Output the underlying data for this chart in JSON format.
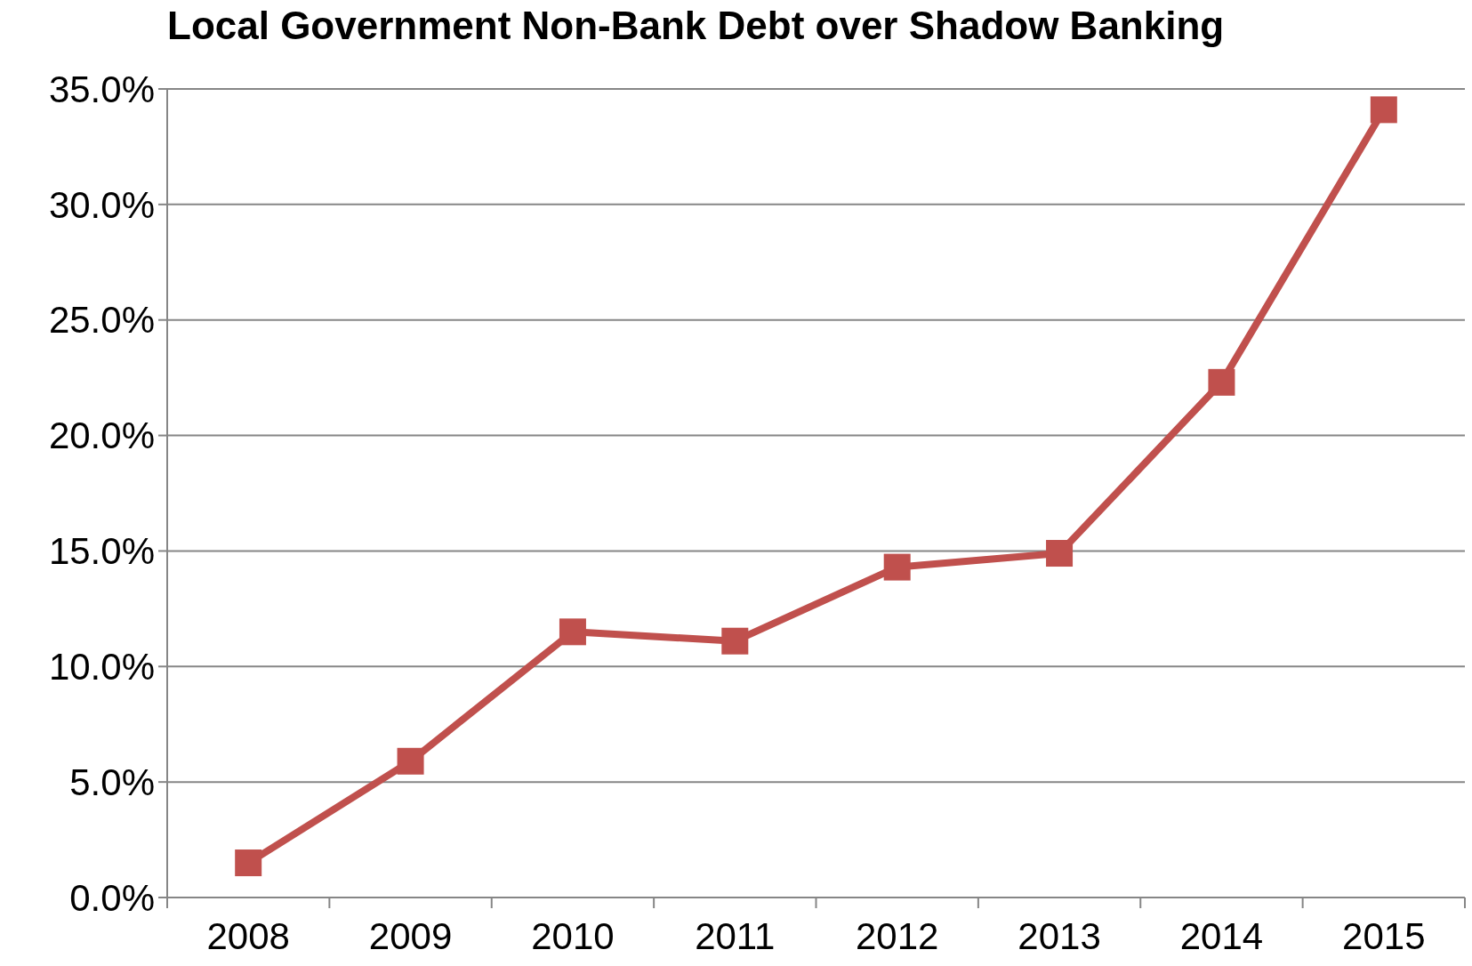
{
  "chart_data": {
    "type": "line",
    "title": "Local Government Non-Bank Debt over Shadow Banking",
    "categories": [
      "2008",
      "2009",
      "2010",
      "2011",
      "2012",
      "2013",
      "2014",
      "2015"
    ],
    "series": [
      {
        "color": "#c0504d",
        "values": [
          1.5,
          5.9,
          11.5,
          11.1,
          14.3,
          14.9,
          22.3,
          34.1
        ]
      }
    ],
    "ylim": [
      0,
      35
    ],
    "yticks": [
      {
        "value": 0,
        "label": "0.0%"
      },
      {
        "value": 5,
        "label": "5.0%"
      },
      {
        "value": 10,
        "label": "10.0%"
      },
      {
        "value": 15,
        "label": "15.0%"
      },
      {
        "value": 20,
        "label": "20.0%"
      },
      {
        "value": 25,
        "label": "25.0%"
      },
      {
        "value": 30,
        "label": "30.0%"
      },
      {
        "value": 35,
        "label": "35.0%"
      }
    ],
    "grid": "y",
    "marker": "square",
    "line_style": "solid"
  }
}
